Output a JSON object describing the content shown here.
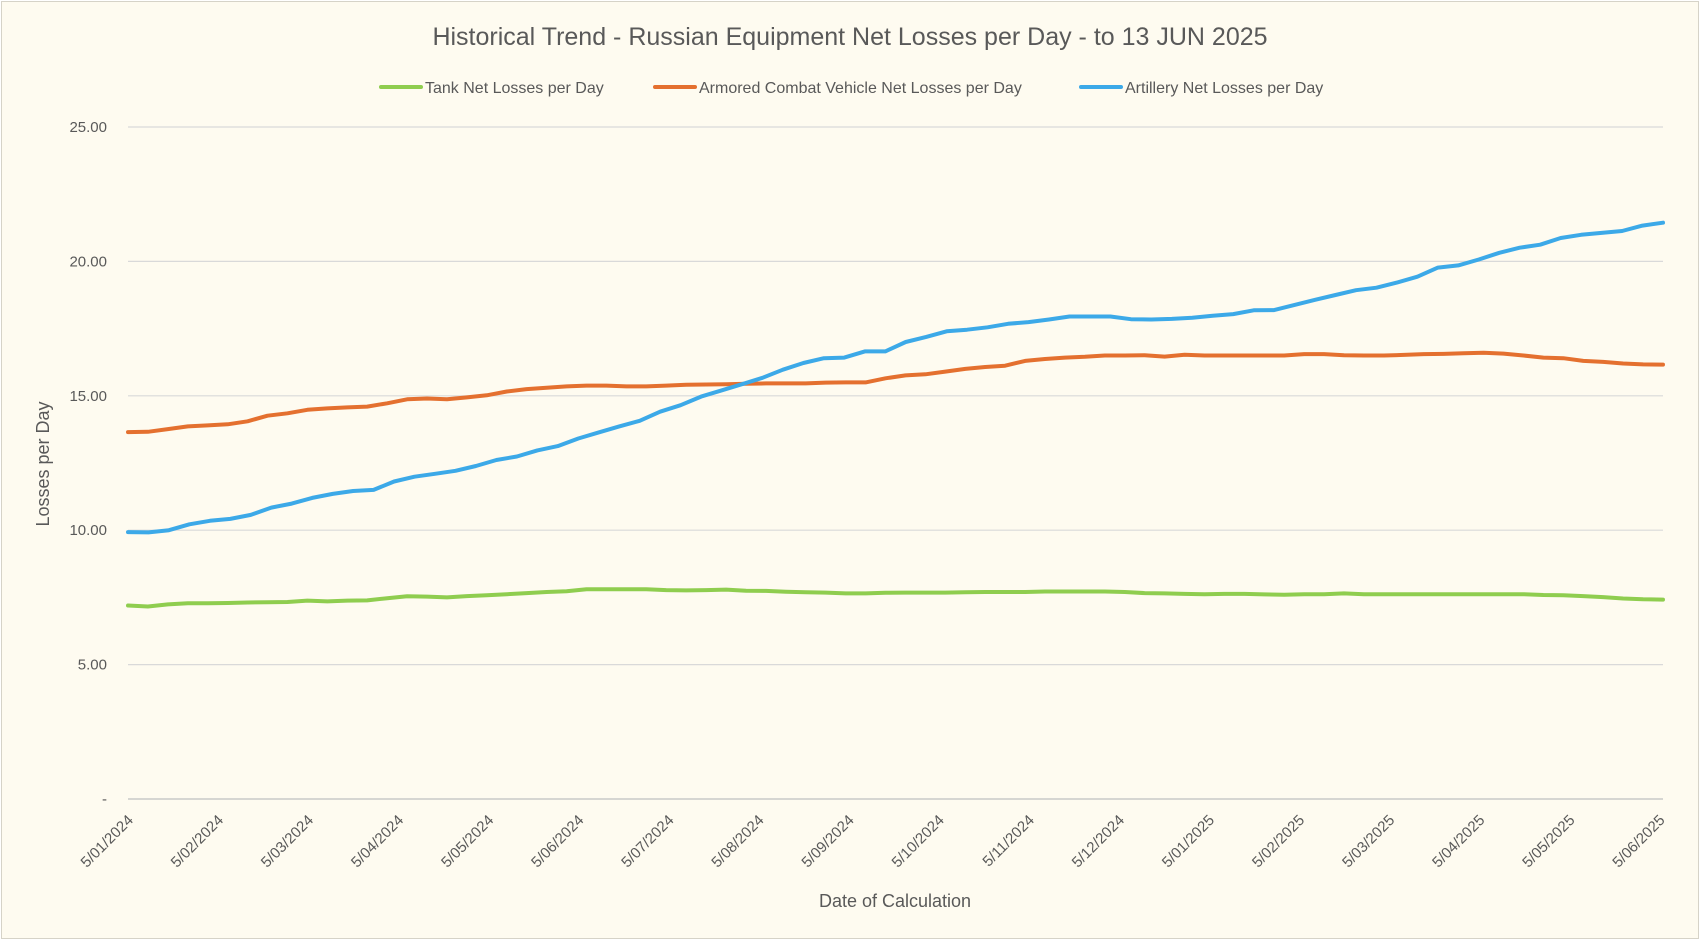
{
  "chart_data": {
    "type": "line",
    "title": "Historical Trend - Russian Equipment Net Losses per Day - to 13 JUN 2025",
    "xlabel": "Date of Calculation",
    "ylabel": "Losses per Day",
    "ylim": [
      0,
      25
    ],
    "y_ticks": [
      {
        "value": 0,
        "label": "-"
      },
      {
        "value": 5,
        "label": "5.00"
      },
      {
        "value": 10,
        "label": "10.00"
      },
      {
        "value": 15,
        "label": "15.00"
      },
      {
        "value": 20,
        "label": "20.00"
      },
      {
        "value": 25,
        "label": "25.00"
      }
    ],
    "x_tick_labels": [
      "5/01/2024",
      "5/02/2024",
      "5/03/2024",
      "5/04/2024",
      "5/05/2024",
      "5/06/2024",
      "5/07/2024",
      "5/08/2024",
      "5/09/2024",
      "5/10/2024",
      "5/11/2024",
      "5/12/2024",
      "5/01/2025",
      "5/02/2025",
      "5/03/2025",
      "5/04/2025",
      "5/05/2025",
      "5/06/2025"
    ],
    "x_dates_first": "5/01/2024",
    "x_dates_last": "13/06/2025",
    "grid": "horizontal",
    "legend_position": "top",
    "series": [
      {
        "name": "Tank Net Losses per Day",
        "color": "#8fcd4f",
        "values": [
          7.2,
          7.16,
          7.24,
          7.28,
          7.28,
          7.29,
          7.31,
          7.32,
          7.33,
          7.38,
          7.35,
          7.38,
          7.39,
          7.47,
          7.54,
          7.53,
          7.5,
          7.55,
          7.58,
          7.62,
          7.66,
          7.7,
          7.73,
          7.8,
          7.8,
          7.8,
          7.8,
          7.77,
          7.76,
          7.77,
          7.79,
          7.75,
          7.74,
          7.71,
          7.69,
          7.68,
          7.65,
          7.65,
          7.67,
          7.68,
          7.68,
          7.68,
          7.69,
          7.7,
          7.7,
          7.7,
          7.72,
          7.72,
          7.72,
          7.72,
          7.7,
          7.66,
          7.65,
          7.63,
          7.62,
          7.63,
          7.63,
          7.61,
          7.6,
          7.62,
          7.62,
          7.65,
          7.62,
          7.62,
          7.62,
          7.62,
          7.62,
          7.62,
          7.62,
          7.62,
          7.62,
          7.59,
          7.58,
          7.55,
          7.51,
          7.46,
          7.43,
          7.42
        ]
      },
      {
        "name": "Armored Combat Vehicle Net Losses per Day",
        "color": "#e4702f",
        "values": [
          13.65,
          13.66,
          13.76,
          13.86,
          13.9,
          13.94,
          14.05,
          14.26,
          14.35,
          14.48,
          14.53,
          14.57,
          14.6,
          14.72,
          14.87,
          14.9,
          14.87,
          14.94,
          15.02,
          15.16,
          15.25,
          15.3,
          15.35,
          15.38,
          15.38,
          15.35,
          15.35,
          15.38,
          15.41,
          15.42,
          15.43,
          15.45,
          15.46,
          15.46,
          15.46,
          15.49,
          15.5,
          15.5,
          15.65,
          15.76,
          15.8,
          15.9,
          16.0,
          16.07,
          16.12,
          16.3,
          16.37,
          16.42,
          16.45,
          16.5,
          16.5,
          16.51,
          16.46,
          16.53,
          16.5,
          16.5,
          16.5,
          16.5,
          16.5,
          16.55,
          16.55,
          16.51,
          16.5,
          16.5,
          16.52,
          16.55,
          16.56,
          16.58,
          16.6,
          16.57,
          16.5,
          16.42,
          16.4,
          16.3,
          16.26,
          16.2,
          16.17,
          16.16
        ]
      },
      {
        "name": "Artillery Net Losses per Day",
        "color": "#3ca9e8",
        "values": [
          9.93,
          9.92,
          10.0,
          10.22,
          10.35,
          10.42,
          10.57,
          10.84,
          10.99,
          11.2,
          11.35,
          11.46,
          11.5,
          11.81,
          11.99,
          12.1,
          12.21,
          12.39,
          12.61,
          12.74,
          12.97,
          13.13,
          13.41,
          13.64,
          13.86,
          14.07,
          14.41,
          14.65,
          14.97,
          15.2,
          15.43,
          15.67,
          15.97,
          16.22,
          16.4,
          16.42,
          16.65,
          16.65,
          17.0,
          17.19,
          17.4,
          17.46,
          17.55,
          17.68,
          17.74,
          17.84,
          17.95,
          17.95,
          17.95,
          17.85,
          17.84,
          17.86,
          17.9,
          17.98,
          18.04,
          18.18,
          18.19,
          18.38,
          18.57,
          18.75,
          18.93,
          19.02,
          19.21,
          19.43,
          19.77,
          19.85,
          20.07,
          20.32,
          20.51,
          20.62,
          20.87,
          20.99,
          21.06,
          21.13,
          21.33,
          21.44
        ]
      }
    ]
  }
}
